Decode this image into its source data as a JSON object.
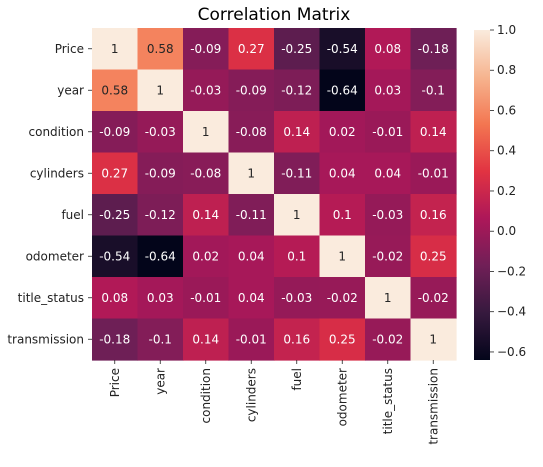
{
  "chart_data": {
    "type": "heatmap",
    "title": "Correlation Matrix",
    "xlabel": "",
    "ylabel": "",
    "x_categories": [
      "Price",
      "year",
      "condition",
      "cylinders",
      "fuel",
      "odometer",
      "title_status",
      "transmission"
    ],
    "y_categories": [
      "Price",
      "year",
      "condition",
      "cylinders",
      "fuel",
      "odometer",
      "title_status",
      "transmission"
    ],
    "values": [
      [
        1,
        0.58,
        -0.09,
        0.27,
        -0.25,
        -0.54,
        0.08,
        -0.18
      ],
      [
        0.58,
        1,
        -0.03,
        -0.09,
        -0.12,
        -0.64,
        0.03,
        -0.1
      ],
      [
        -0.09,
        -0.03,
        1,
        -0.08,
        0.14,
        0.02,
        -0.01,
        0.14
      ],
      [
        0.27,
        -0.09,
        -0.08,
        1,
        -0.11,
        0.04,
        0.04,
        -0.01
      ],
      [
        -0.25,
        -0.12,
        0.14,
        -0.11,
        1,
        0.1,
        -0.03,
        0.16
      ],
      [
        -0.54,
        -0.64,
        0.02,
        0.04,
        0.1,
        1,
        -0.02,
        0.25
      ],
      [
        0.08,
        0.03,
        -0.01,
        0.04,
        -0.03,
        -0.02,
        1,
        -0.02
      ],
      [
        -0.18,
        -0.1,
        0.14,
        -0.01,
        0.16,
        0.25,
        -0.02,
        1
      ]
    ],
    "colorbar": {
      "range": [
        -0.64,
        1
      ],
      "ticks": [
        1.0,
        0.8,
        0.6,
        0.4,
        0.2,
        0.0,
        -0.2,
        -0.4,
        -0.6
      ],
      "tick_labels": [
        "1.0",
        "0.8",
        "0.6",
        "0.4",
        "0.2",
        "0.0",
        "−0.2",
        "−0.4",
        "−0.6"
      ],
      "colormap": "rocket",
      "colormap_stops": [
        "#03051a",
        "#36193e",
        "#701f57",
        "#ad1759",
        "#e13342",
        "#f37651",
        "#f6b48f",
        "#faebdd"
      ]
    },
    "cell_text_colors": {
      "on_dark": "#ffffff",
      "on_light": "#262626"
    }
  }
}
